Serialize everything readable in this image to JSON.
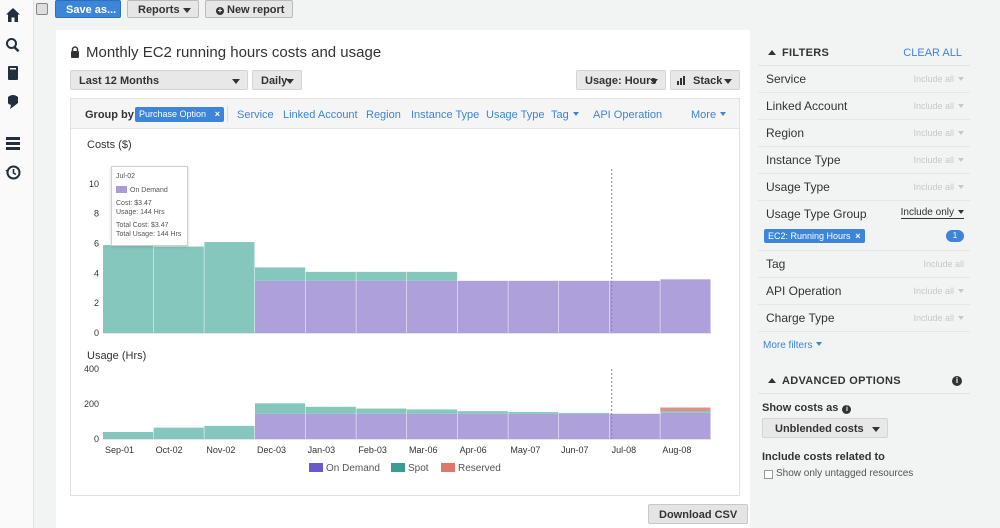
{
  "toolbar": {
    "save_as_label": "Save as...",
    "reports_label": "Reports",
    "new_report_label": "New report"
  },
  "rail": {
    "icons": [
      "home-icon",
      "search-icon",
      "book-icon",
      "bookmark-icon",
      "list-icon",
      "history-icon"
    ]
  },
  "report": {
    "title": "Monthly EC2 running hours costs and usage",
    "time_range": "Last 12 Months",
    "granularity": "Daily",
    "usage_select": "Usage: Hours",
    "stack_select": "Stack"
  },
  "group_by": {
    "label": "Group by:",
    "selected": "Purchase Option",
    "options": [
      "Service",
      "Linked Account",
      "Region",
      "Instance Type",
      "Usage Type",
      "Tag",
      "API Operation",
      "More"
    ]
  },
  "tooltip": {
    "date": "Jul-02",
    "series": "On Demand",
    "cost": "Cost: $3.47",
    "usage": "Usage: 144 Hrs",
    "total_cost": "Total Cost: $3.47",
    "total_usage": "Total Usage: 144 Hrs"
  },
  "chart_data": [
    {
      "type": "bar",
      "ylabel": "Costs ($)",
      "ylim": [
        0,
        11
      ],
      "yticks": [
        0,
        2,
        4,
        6,
        8,
        10
      ],
      "stacked": true,
      "x": [
        "Sep-01",
        "Oct-02",
        "Nov-02",
        "Dec-03",
        "Jan-03",
        "Feb-03",
        "Mar-06",
        "Apr-06",
        "May-07",
        "Jun-07",
        "Jul-08",
        "Aug-08"
      ],
      "series": [
        {
          "name": "On Demand",
          "color": "#a99bd9",
          "values": [
            0,
            0,
            0,
            3.5,
            3.5,
            3.5,
            3.5,
            3.5,
            3.5,
            3.5,
            3.5,
            3.6
          ]
        },
        {
          "name": "Spot",
          "color": "#7fc4b9",
          "values": [
            5.9,
            5.8,
            6.1,
            0.9,
            0.6,
            0.6,
            0.6,
            0,
            0,
            0,
            0,
            0
          ]
        },
        {
          "name": "Reserved",
          "color": "#e08a7c",
          "values": [
            0,
            0,
            0,
            0,
            0,
            0,
            0,
            0,
            0,
            0,
            0,
            0
          ]
        }
      ]
    },
    {
      "type": "bar",
      "ylabel": "Usage (Hrs)",
      "ylim": [
        0,
        400
      ],
      "yticks": [
        0,
        200,
        400
      ],
      "stacked": true,
      "x": [
        "Sep-01",
        "Oct-02",
        "Nov-02",
        "Dec-03",
        "Jan-03",
        "Feb-03",
        "Mar-06",
        "Apr-06",
        "May-07",
        "Jun-07",
        "Jul-08",
        "Aug-08"
      ],
      "series": [
        {
          "name": "On Demand",
          "color": "#a99bd9",
          "values": [
            0,
            0,
            0,
            144,
            144,
            144,
            144,
            144,
            144,
            144,
            144,
            150
          ]
        },
        {
          "name": "Spot",
          "color": "#7fc4b9",
          "values": [
            40,
            65,
            75,
            60,
            40,
            30,
            25,
            15,
            10,
            5,
            0,
            10
          ]
        },
        {
          "name": "Reserved",
          "color": "#e08a7c",
          "values": [
            0,
            0,
            0,
            0,
            0,
            0,
            0,
            0,
            0,
            0,
            0,
            20
          ]
        }
      ]
    }
  ],
  "legend": {
    "on_demand": "On Demand",
    "spot": "Spot",
    "reserved": "Reserved"
  },
  "download_label": "Download CSV",
  "filters": {
    "title": "FILTERS",
    "clear_all": "CLEAR ALL",
    "rows": [
      {
        "name": "Service",
        "value": "Include all"
      },
      {
        "name": "Linked Account",
        "value": "Include all"
      },
      {
        "name": "Region",
        "value": "Include all"
      },
      {
        "name": "Instance Type",
        "value": "Include all"
      },
      {
        "name": "Usage Type",
        "value": "Include all"
      },
      {
        "name": "Usage Type Group",
        "value": "Include only"
      },
      {
        "name": "Tag",
        "value": "Include all"
      },
      {
        "name": "API Operation",
        "value": "Include all"
      },
      {
        "name": "Charge Type",
        "value": "Include all"
      }
    ],
    "usage_type_group_chip": "EC2: Running Hours",
    "usage_type_group_count": "1",
    "more_filters": "More filters"
  },
  "advanced": {
    "title": "ADVANCED OPTIONS",
    "show_costs_as": "Show costs as",
    "cost_type": "Unblended costs",
    "include_costs_label": "Include costs related to",
    "untagged_label": "Show only untagged resources"
  }
}
